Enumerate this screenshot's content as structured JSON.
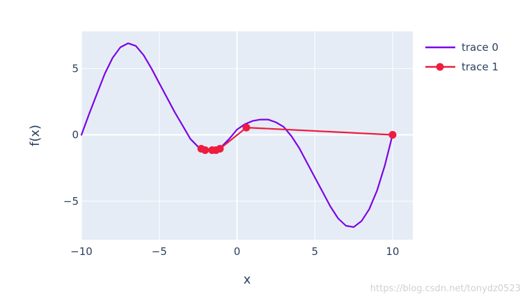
{
  "chart_data": {
    "type": "line",
    "xlabel": "x",
    "ylabel": "f(x)",
    "xlim": [
      -10,
      11.3
    ],
    "ylim": [
      -7.9,
      7.8
    ],
    "x_ticks": [
      -10,
      -5,
      0,
      5,
      10
    ],
    "y_ticks": [
      -5,
      0,
      5
    ],
    "grid": true,
    "legend_position": "top-right",
    "series": [
      {
        "name": "trace 0",
        "color": "#7b00e6",
        "mode": "lines",
        "x": [
          -10,
          -9.5,
          -9,
          -8.5,
          -8,
          -7.5,
          -7,
          -6.5,
          -6,
          -5.5,
          -5,
          -4.5,
          -4,
          -3.5,
          -3,
          -2.5,
          -2,
          -1.5,
          -1,
          -0.5,
          0,
          0.5,
          1,
          1.5,
          2,
          2.5,
          3,
          3.5,
          4,
          4.5,
          5,
          5.5,
          6,
          6.5,
          7,
          7.5,
          8,
          8.5,
          9,
          9.5,
          10
        ],
        "y": [
          0.0,
          1.6,
          3.1,
          4.6,
          5.8,
          6.6,
          6.9,
          6.7,
          6.0,
          5.0,
          3.9,
          2.8,
          1.7,
          0.7,
          -0.3,
          -0.9,
          -1.15,
          -1.15,
          -0.9,
          -0.3,
          0.4,
          0.8,
          1.05,
          1.15,
          1.15,
          0.95,
          0.6,
          -0.1,
          -1.0,
          -2.1,
          -3.2,
          -4.3,
          -5.4,
          -6.3,
          -6.85,
          -6.95,
          -6.5,
          -5.6,
          -4.2,
          -2.3,
          0.0
        ]
      },
      {
        "name": "trace 1",
        "color": "#ee1c3e",
        "mode": "lines+markers",
        "x": [
          10,
          0.6,
          -1.1,
          -1.35,
          -1.6,
          -2.05,
          -2.3
        ],
        "y": [
          0.0,
          0.55,
          -1.05,
          -1.15,
          -1.15,
          -1.15,
          -1.05
        ]
      }
    ]
  },
  "watermark": "https://blog.csdn.net/tonydz0523"
}
